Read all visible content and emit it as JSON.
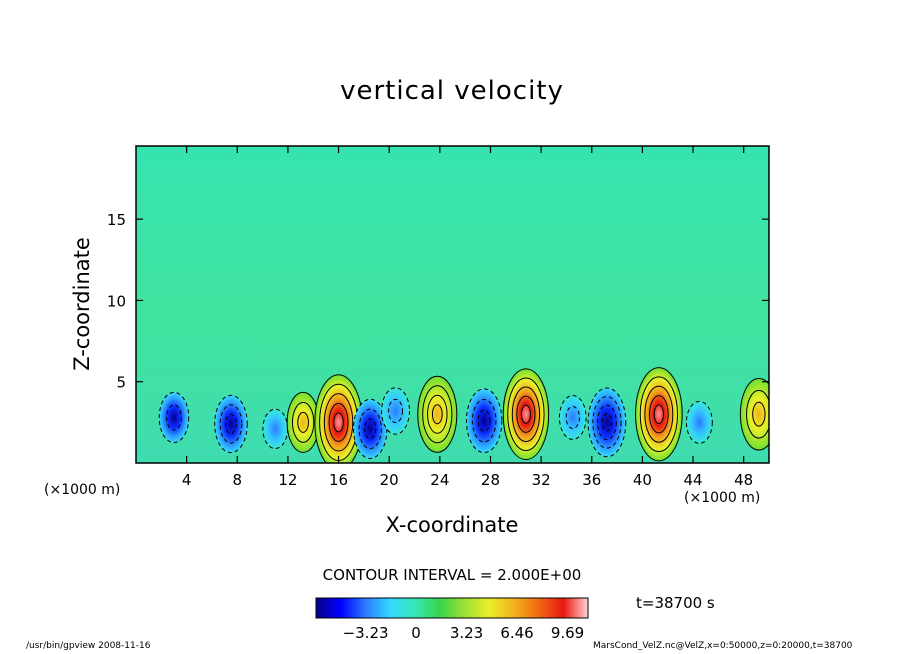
{
  "chart_data": {
    "type": "heatmap",
    "title": "vertical velocity",
    "xlabel": "X-coordinate",
    "ylabel": "Z-coordinate",
    "x_unit_left": "(×1000 m)",
    "x_unit_right": "(×1000 m)",
    "xlim": [
      0,
      50
    ],
    "ylim": [
      0,
      19.5
    ],
    "x_ticks": [
      4,
      8,
      12,
      16,
      20,
      24,
      28,
      32,
      36,
      40,
      44,
      48
    ],
    "y_ticks": [
      5,
      10,
      15
    ],
    "contour_interval_label": "CONTOUR INTERVAL = 2.000E+00",
    "time_label": "t=38700 s",
    "colorbar": {
      "ticks": [
        -3.23,
        0,
        3.23,
        6.46,
        9.69
      ],
      "tick_labels": [
        "−3.23",
        "0",
        "3.23",
        "6.46",
        "9.69"
      ],
      "range": [
        -6.4,
        11.0
      ],
      "colors": [
        "#08008a",
        "#0000ff",
        "#2b7bff",
        "#35d9ff",
        "#36e8b4",
        "#39d44b",
        "#9be035",
        "#e8f028",
        "#f2b21d",
        "#f26a12",
        "#e8170f",
        "#ffd2d2"
      ]
    },
    "cells": [
      {
        "x": 3,
        "z": 2.8,
        "w": -4.1
      },
      {
        "x": 7.5,
        "z": 2.4,
        "w": -5.2
      },
      {
        "x": 11,
        "z": 2.1,
        "w": -2.4
      },
      {
        "x": 13.2,
        "z": 2.5,
        "w": 5.0
      },
      {
        "x": 16,
        "z": 2.5,
        "w": 10.5
      },
      {
        "x": 18.5,
        "z": 2.1,
        "w": -5.5
      },
      {
        "x": 20.5,
        "z": 3.2,
        "w": -3.5
      },
      {
        "x": 23.8,
        "z": 3.0,
        "w": 7.5
      },
      {
        "x": 27.5,
        "z": 2.6,
        "w": -6.2
      },
      {
        "x": 30.8,
        "z": 3.0,
        "w": 9.8
      },
      {
        "x": 34.5,
        "z": 2.8,
        "w": -3.1
      },
      {
        "x": 37.2,
        "z": 2.5,
        "w": -7.0
      },
      {
        "x": 41.3,
        "z": 3.0,
        "w": 10.2
      },
      {
        "x": 44.5,
        "z": 2.5,
        "w": -2.8
      },
      {
        "x": 49.2,
        "z": 3.0,
        "w": 6.8
      }
    ],
    "grid": false
  },
  "footer": {
    "left": "/usr/bin/gpview   2008-11-16",
    "right": "MarsCond_VelZ.nc@VelZ,x=0:50000,z=0:20000,t=38700"
  }
}
